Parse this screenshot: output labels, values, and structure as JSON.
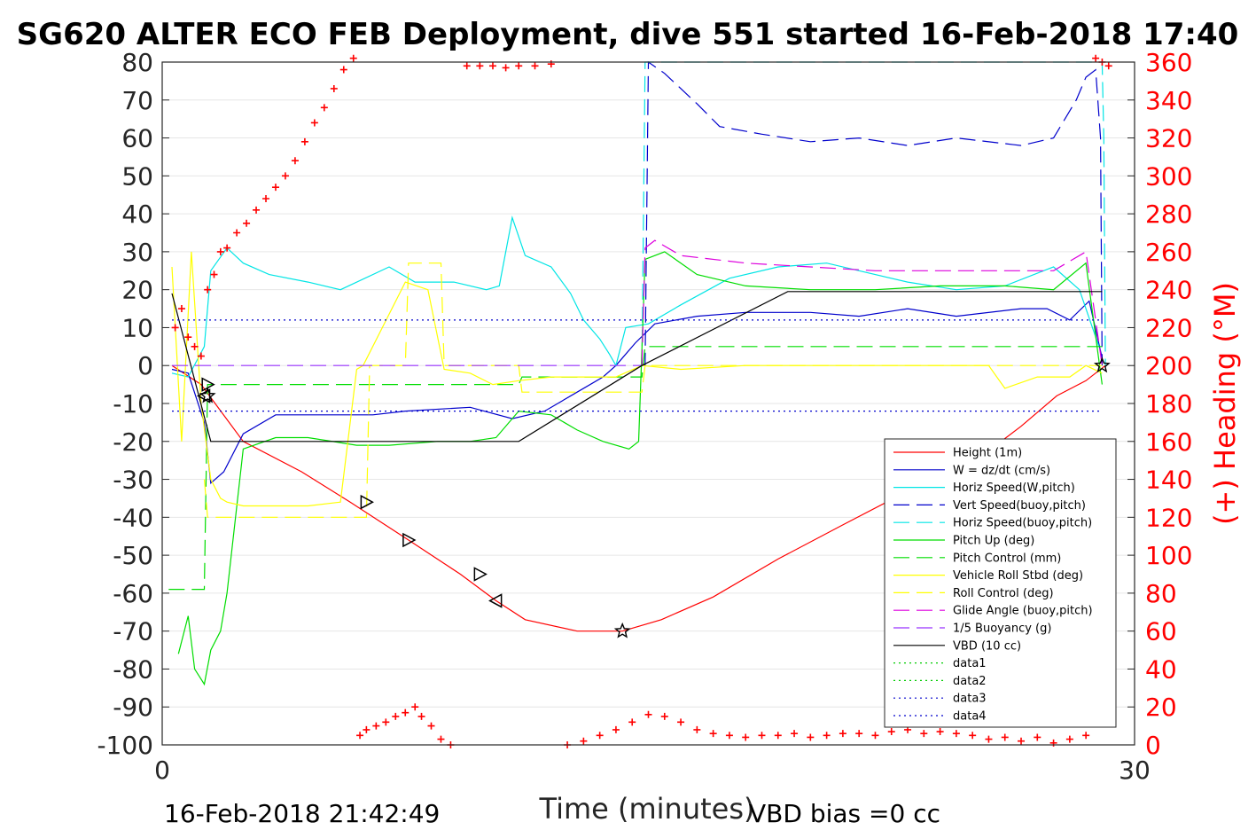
{
  "chart_data": {
    "type": "line",
    "title": "SG620 ALTER ECO FEB Deployment, dive 551 started 16-Feb-2018 17:40",
    "xlabel": "Time (minutes)",
    "ylabel_right": "(+) Heading (°M)",
    "xlim": [
      0,
      30
    ],
    "ylim_left": [
      -100,
      80
    ],
    "ylim_right": [
      0,
      360
    ],
    "x_ticks": [
      "0",
      "30"
    ],
    "y_ticks_left": [
      "80",
      "70",
      "60",
      "50",
      "40",
      "30",
      "20",
      "10",
      "0",
      "-10",
      "-20",
      "-30",
      "-40",
      "-50",
      "-60",
      "-70",
      "-80",
      "-90",
      "-100"
    ],
    "y_ticks_right": [
      "360",
      "340",
      "320",
      "300",
      "280",
      "260",
      "240",
      "220",
      "200",
      "180",
      "160",
      "140",
      "120",
      "100",
      "80",
      "60",
      "40",
      "20",
      "0"
    ],
    "grid": true,
    "legend_position": "bottom-right",
    "footer_left": "16-Feb-2018 21:42:49",
    "footer_right": "VBD bias =0 cc",
    "series": [
      {
        "name": "Height (1m)",
        "color": "#ff0000",
        "dash": "solid",
        "axis": "left",
        "x": [
          0.3,
          1.2,
          2.5,
          4.3,
          5.8,
          7.6,
          9.2,
          10.3,
          11.2,
          12.8,
          14.2,
          15.4,
          17.0,
          19.0,
          21.0,
          22.8,
          24.8,
          26.5,
          27.6,
          28.5,
          29.1
        ],
        "y": [
          0,
          -5,
          -20,
          -28,
          -36,
          -46,
          -55,
          -62,
          -67,
          -70,
          -70,
          -67,
          -61,
          -51,
          -42,
          -34,
          -27,
          -16,
          -8,
          -4,
          0
        ]
      },
      {
        "name": "W = dz/dt (cm/s)",
        "color": "#0000cc",
        "dash": "solid",
        "axis": "left",
        "x": [
          0.3,
          0.8,
          1.3,
          1.5,
          1.9,
          2.5,
          3.5,
          5,
          6.5,
          7.5,
          9.5,
          10.8,
          11.8,
          12.8,
          13.6,
          14.0,
          14.2,
          14.6,
          15.2,
          16.5,
          18.0,
          20.0,
          21.5,
          23.0,
          24.5,
          26.5,
          27.3,
          28.0,
          28.6,
          29.0
        ],
        "y": [
          -1,
          -2,
          -15,
          -31,
          -28,
          -18,
          -13,
          -13,
          -13,
          -12,
          -11,
          -14,
          -12,
          -7,
          -3,
          0,
          2,
          6,
          11,
          13,
          14,
          14,
          13,
          15,
          13,
          15,
          15,
          12,
          17,
          2
        ]
      },
      {
        "name": "Horiz Speed(W,pitch)",
        "color": "#00e5e5",
        "dash": "solid",
        "axis": "left",
        "x": [
          0.3,
          0.8,
          1.3,
          1.5,
          2.0,
          2.5,
          3.3,
          4.5,
          5.5,
          7.0,
          7.8,
          9.0,
          10.0,
          10.4,
          10.8,
          11.2,
          12.0,
          12.6,
          13.0,
          13.5,
          13.8,
          14.0,
          14.3,
          15.0,
          16.0,
          17.5,
          19.0,
          20.5,
          21.5,
          23.0,
          24.5,
          26.0,
          27.5,
          28.3,
          28.9
        ],
        "y": [
          -2,
          -3,
          5,
          25,
          31,
          27,
          24,
          22,
          20,
          26,
          22,
          22,
          20,
          21,
          39,
          29,
          26,
          19,
          12,
          7,
          3,
          0,
          10,
          11,
          16,
          23,
          26,
          27,
          25,
          22,
          20,
          21,
          26,
          20,
          5
        ]
      },
      {
        "name": "Vert Speed(buoy,pitch)",
        "color": "#0000cc",
        "dash": "long",
        "axis": "left",
        "x": [
          14.8,
          14.9,
          15.0,
          15.5,
          16.5,
          17.2,
          18.5,
          20.0,
          21.5,
          23.0,
          24.5,
          26.5,
          27.5,
          28.2,
          28.5,
          28.8,
          28.95,
          29.0
        ],
        "y": [
          0,
          0,
          80,
          77,
          69,
          63,
          61,
          59,
          60,
          58,
          60,
          58,
          60,
          70,
          76,
          78,
          60,
          0
        ]
      },
      {
        "name": "Horiz Speed(buoy,pitch)",
        "color": "#00e5e5",
        "dash": "long",
        "axis": "left",
        "x": [
          14.7,
          14.8,
          14.9,
          29.0,
          29.05,
          29.1
        ],
        "y": [
          0,
          0,
          80,
          80,
          60,
          0
        ]
      },
      {
        "name": "Pitch Up (deg)",
        "color": "#00dd00",
        "dash": "solid",
        "axis": "left",
        "x": [
          0.5,
          0.8,
          1.0,
          1.3,
          1.5,
          1.8,
          2.0,
          2.5,
          3.5,
          4.5,
          6.0,
          7.0,
          8.5,
          9.5,
          10.3,
          11.0,
          12.0,
          12.8,
          13.6,
          14.4,
          14.7,
          14.9,
          15.5,
          16.5,
          18.0,
          20.0,
          22.0,
          24.0,
          26.0,
          27.5,
          28.5,
          29.0
        ],
        "y": [
          -76,
          -66,
          -80,
          -84,
          -75,
          -70,
          -60,
          -22,
          -19,
          -19,
          -21,
          -21,
          -20,
          -20,
          -19,
          -12,
          -13,
          -17,
          -20,
          -22,
          -20,
          28,
          30,
          24,
          21,
          20,
          20,
          21,
          21,
          20,
          27,
          -5
        ]
      },
      {
        "name": "Pitch Control (mm)",
        "color": "#00dd00",
        "dash": "long",
        "axis": "left",
        "x": [
          0.2,
          1.3,
          1.4,
          11.0,
          11.1,
          14.8,
          14.9,
          29.0
        ],
        "y": [
          -59,
          -59,
          -5,
          -5,
          -3,
          -3,
          5,
          5
        ]
      },
      {
        "name": "Vehicle Roll Stbd (deg)",
        "color": "#ffff00",
        "dash": "solid",
        "axis": "left",
        "x": [
          0.3,
          0.6,
          0.9,
          1.2,
          1.5,
          1.8,
          2.0,
          2.5,
          3.5,
          4.5,
          5.5,
          6.0,
          6.2,
          7.5,
          8.2,
          8.7,
          9.5,
          10.2,
          11.0,
          12.0,
          13.0,
          14.0,
          14.8,
          16.0,
          18.0,
          20.0,
          22.0,
          24.0,
          25.5,
          26.0,
          27.0,
          28.0,
          28.5,
          29.0
        ],
        "y": [
          26,
          -20,
          30,
          -10,
          -30,
          -35,
          -36,
          -37,
          -37,
          -37,
          -36,
          -1,
          0,
          22,
          20,
          -1,
          -2,
          -5,
          -4,
          -3,
          -3,
          -3,
          0,
          -1,
          0,
          0,
          0,
          0,
          0,
          -6,
          -3,
          -3,
          0,
          -2
        ]
      },
      {
        "name": "Roll Control (deg)",
        "color": "#ffff00",
        "dash": "long",
        "axis": "left",
        "x": [
          1.3,
          1.4,
          6.3,
          6.4,
          7.5,
          7.6,
          8.6,
          8.7,
          11.0,
          11.1,
          14.8,
          14.9,
          29.0
        ],
        "y": [
          -30,
          -40,
          -40,
          0,
          0,
          27,
          27,
          0,
          0,
          -7,
          -7,
          0,
          0
        ]
      },
      {
        "name": "Glide Angle (buoy,pitch)",
        "color": "#dd00dd",
        "dash": "long",
        "axis": "left",
        "x": [
          14.8,
          14.9,
          15.2,
          16.0,
          18.0,
          20.0,
          22.0,
          24.0,
          26.0,
          27.5,
          28.5,
          29.0
        ],
        "y": [
          0,
          31,
          33,
          29,
          27,
          26,
          25,
          25,
          25,
          25,
          30,
          0
        ]
      },
      {
        "name": "1/5 Buoyancy (g)",
        "color": "#9933ff",
        "dash": "long",
        "axis": "left",
        "x": [
          0.3,
          14.8
        ],
        "y": [
          0,
          0
        ]
      },
      {
        "name": "VBD (10 cc)",
        "color": "#000000",
        "dash": "solid",
        "axis": "left",
        "x": [
          0.3,
          1.5,
          11.0,
          14.8,
          19.3,
          29.0
        ],
        "y": [
          19,
          -20,
          -20,
          0,
          19.5,
          19.5
        ]
      },
      {
        "name": "data1",
        "color": "#00cc00",
        "dash": "dot",
        "axis": "left",
        "x": [],
        "y": []
      },
      {
        "name": "data2",
        "color": "#00cc00",
        "dash": "dot",
        "axis": "left",
        "x": [],
        "y": []
      },
      {
        "name": "data3",
        "color": "#0000cc",
        "dash": "dot",
        "axis": "left",
        "x": [
          0.3,
          29.0
        ],
        "y": [
          12,
          12
        ]
      },
      {
        "name": "data4",
        "color": "#0000cc",
        "dash": "dot",
        "axis": "left",
        "x": [
          0.3,
          29.0
        ],
        "y": [
          -12,
          -12
        ]
      }
    ],
    "heading_series": {
      "color": "#ff0000",
      "marker": "+",
      "axis": "right",
      "x": [
        0.4,
        0.6,
        0.8,
        1.0,
        1.2,
        1.4,
        1.6,
        1.8,
        2.0,
        2.3,
        2.6,
        2.9,
        3.2,
        3.5,
        3.8,
        4.1,
        4.4,
        4.7,
        5.0,
        5.3,
        5.6,
        5.9,
        6.1,
        6.3,
        6.6,
        6.9,
        7.2,
        7.5,
        7.8,
        8.0,
        8.3,
        8.6,
        8.9,
        9.4,
        9.8,
        10.2,
        10.6,
        11.0,
        11.5,
        12.0,
        12.5,
        13.0,
        13.5,
        14.0,
        14.5,
        15.0,
        15.5,
        16.0,
        16.5,
        17.0,
        17.5,
        18.0,
        18.5,
        19.0,
        19.5,
        20.0,
        20.5,
        21.0,
        21.5,
        22.0,
        22.5,
        23.0,
        23.5,
        24.0,
        24.5,
        25.0,
        25.5,
        26.0,
        26.5,
        27.0,
        27.5,
        28.0,
        28.5,
        28.8,
        29.0,
        29.2
      ],
      "y": [
        220,
        230,
        215,
        210,
        205,
        240,
        248,
        260,
        262,
        270,
        275,
        282,
        288,
        294,
        300,
        308,
        318,
        328,
        336,
        346,
        356,
        362,
        5,
        8,
        10,
        12,
        15,
        17,
        20,
        15,
        10,
        3,
        0,
        358,
        358,
        358,
        357,
        358,
        358,
        359,
        0,
        2,
        5,
        8,
        12,
        16,
        15,
        12,
        8,
        6,
        5,
        4,
        5,
        5,
        6,
        4,
        5,
        6,
        6,
        5,
        7,
        8,
        6,
        7,
        6,
        5,
        3,
        4,
        2,
        4,
        1,
        3,
        5,
        362,
        360,
        358
      ]
    },
    "markers": {
      "triangle_right": {
        "x": [
          1.4,
          6.3,
          7.6,
          9.8
        ],
        "y": [
          -5,
          -36,
          -46,
          -55
        ]
      },
      "triangle_left": {
        "x": [
          1.3,
          10.3
        ],
        "y": [
          -8,
          -62
        ]
      },
      "star": {
        "x": [
          1.4,
          14.2,
          29.0
        ],
        "y": [
          -8,
          -70,
          0
        ]
      }
    }
  }
}
